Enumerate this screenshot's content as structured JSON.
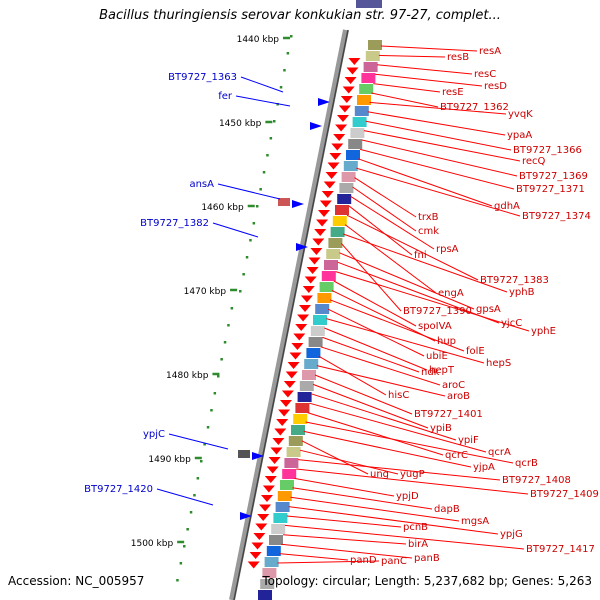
{
  "title": "Bacillus thuringiensis serovar konkukian str. 97-27, complet...",
  "accession": "Accession: NC_005957",
  "summary": "Topology: circular; Length: 5,237,682 bp; Genes: 5,263",
  "colors": {
    "backbone": "#888888",
    "tick": "#2e8b2e",
    "reverse_gene": "#ff0000",
    "forward_gene": "#0000ff",
    "reverse_label": "#cc0000",
    "forward_label": "#0000cc"
  },
  "scale_labels": [
    "1440 kbp",
    "1450 kbp",
    "1460 kbp",
    "1470 kbp",
    "1480 kbp",
    "1490 kbp",
    "1500 kbp"
  ],
  "forward_labels": [
    "BT9727_1363",
    "fer",
    "ansA",
    "BT9727_1382",
    "ypjC",
    "BT9727_1420"
  ],
  "reverse_labels": [
    "resA",
    "resB",
    "resC",
    "resD",
    "resE",
    "BT9727_1362",
    "yvqK",
    "ypaA",
    "BT9727_1366",
    "recQ",
    "BT9727_1369",
    "BT9727_1371",
    "gdhA",
    "BT9727_1374",
    "trxB",
    "cmk",
    "rpsA",
    "fni",
    "BT9727_1383",
    "engA",
    "yphB",
    "BT9727_1390",
    "gpsA",
    "yjcC",
    "yphE",
    "spoIVA",
    "hup",
    "folE",
    "ubiE",
    "hepS",
    "hepT",
    "ndk",
    "aroC",
    "hisC",
    "aroB",
    "BT9727_1401",
    "ypiB",
    "ypiF",
    "qcrA",
    "qcrC",
    "qcrB",
    "yjpA",
    "ung",
    "yugP",
    "BT9727_1408",
    "BT9727_1409",
    "ypjD",
    "dapB",
    "mgsA",
    "ypjG",
    "pcnB",
    "BT9727_1417",
    "birA",
    "panB",
    "panD",
    "panC"
  ]
}
